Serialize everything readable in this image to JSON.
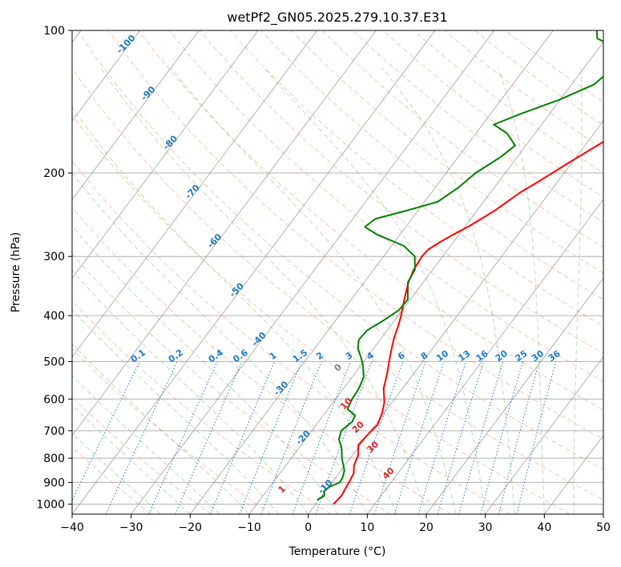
{
  "chart_data": {
    "type": "line",
    "chart_kind": "skew-T log-P diagram",
    "title": "wetPf2_GN05.2025.279.10.37.E31",
    "xlabel": "Temperature (°C)",
    "ylabel": "Pressure (hPa)",
    "xlim": [
      -40,
      50
    ],
    "ylim": [
      1050,
      100
    ],
    "y_scale": "log",
    "x_ticks": [
      "−40",
      "−30",
      "−20",
      "−10",
      "0",
      "10",
      "20",
      "30",
      "40",
      "50"
    ],
    "y_ticks": [
      "100",
      "200",
      "300",
      "400",
      "500",
      "600",
      "700",
      "800",
      "900",
      "1000"
    ],
    "grid": true,
    "series": [
      {
        "color": "#ff0000",
        "role": "temperature",
        "points": [
          [
            3.0,
            1000
          ],
          [
            3.3,
            960
          ],
          [
            3.0,
            920
          ],
          [
            2.8,
            890
          ],
          [
            2.5,
            860
          ],
          [
            1.6,
            830
          ],
          [
            1.0,
            790
          ],
          [
            -0.3,
            750
          ],
          [
            0.0,
            710
          ],
          [
            0.4,
            680
          ],
          [
            -0.4,
            640
          ],
          [
            -1.3,
            610
          ],
          [
            -3.2,
            570
          ],
          [
            -4.5,
            530
          ],
          [
            -5.7,
            500
          ],
          [
            -6.9,
            470
          ],
          [
            -7.9,
            445
          ],
          [
            -8.7,
            420
          ],
          [
            -9.5,
            400
          ],
          [
            -10.5,
            380
          ],
          [
            -11.5,
            360
          ],
          [
            -12.5,
            340
          ],
          [
            -13.2,
            320
          ],
          [
            -13.5,
            300
          ],
          [
            -13.3,
            290
          ],
          [
            -12.3,
            280
          ],
          [
            -11.0,
            270
          ],
          [
            -9.5,
            260
          ],
          [
            -8.2,
            250
          ],
          [
            -7.0,
            240
          ],
          [
            -6.0,
            230
          ],
          [
            -5.0,
            220
          ],
          [
            -3.5,
            210
          ],
          [
            -2.0,
            200
          ],
          [
            -0.5,
            190
          ],
          [
            1.2,
            180
          ],
          [
            3.0,
            170
          ],
          [
            4.3,
            160
          ],
          [
            5.7,
            150
          ],
          [
            6.8,
            140
          ],
          [
            8.1,
            130
          ],
          [
            9.5,
            120
          ],
          [
            10.6,
            110
          ],
          [
            11.6,
            100
          ]
        ]
      },
      {
        "color": "#008000",
        "role": "dewpoint",
        "points": [
          [
            -0.3,
            980
          ],
          [
            0.4,
            960
          ],
          [
            -0.2,
            940
          ],
          [
            0.1,
            920
          ],
          [
            1.3,
            900
          ],
          [
            1.2,
            880
          ],
          [
            0.6,
            850
          ],
          [
            -1.4,
            800
          ],
          [
            -2.8,
            760
          ],
          [
            -4.3,
            730
          ],
          [
            -5.0,
            700
          ],
          [
            -4.3,
            670
          ],
          [
            -4.6,
            650
          ],
          [
            -6.7,
            630
          ],
          [
            -7.2,
            600
          ],
          [
            -7.4,
            570
          ],
          [
            -8.0,
            540
          ],
          [
            -9.6,
            510
          ],
          [
            -11.0,
            490
          ],
          [
            -12.6,
            470
          ],
          [
            -13.6,
            450
          ],
          [
            -13.4,
            430
          ],
          [
            -11.9,
            410
          ],
          [
            -10.6,
            390
          ],
          [
            -10.4,
            370
          ],
          [
            -11.5,
            355
          ],
          [
            -12.6,
            340
          ],
          [
            -13.0,
            320
          ],
          [
            -14.7,
            300
          ],
          [
            -17.9,
            285
          ],
          [
            -23.8,
            270
          ],
          [
            -26.9,
            260
          ],
          [
            -26.2,
            250
          ],
          [
            -21.9,
            240
          ],
          [
            -17.8,
            230
          ],
          [
            -16.1,
            215
          ],
          [
            -15.0,
            200
          ],
          [
            -12.8,
            185
          ],
          [
            -11.8,
            175
          ],
          [
            -14.7,
            165
          ],
          [
            -18.1,
            158
          ],
          [
            -14.9,
            150
          ],
          [
            -10.1,
            140
          ],
          [
            -6.2,
            130
          ],
          [
            -5.0,
            120
          ],
          [
            -5.9,
            110
          ],
          [
            -11.5,
            104
          ],
          [
            -12.6,
            100
          ]
        ]
      }
    ],
    "dry_adiabat_labels": [
      "-100",
      "-90",
      "-80",
      "-70",
      "-60",
      "-50",
      "-40",
      "-30",
      "-20",
      "-10"
    ],
    "mixing_ratio_labels": [
      "0.1",
      "0.2",
      "0.4",
      "0.6",
      "1",
      "1.5",
      "2",
      "3",
      "4",
      "6",
      "8",
      "10",
      "13",
      "16",
      "20",
      "25",
      "30",
      "36"
    ],
    "moist_adiabat_labels": [
      "1",
      "0",
      "10",
      "20",
      "30",
      "40"
    ],
    "colors": {
      "temperature": "#ff0000",
      "dewpoint": "#008000",
      "dry_adiabat": "#ff8c69",
      "moist_adiabat": "#5cb85c",
      "mixing_ratio": "#1e78d2",
      "isotherm": "#808080",
      "isobar": "#b0b0b0",
      "label_red": "#d62728",
      "label_blue": "#1f77b4",
      "label_gray": "#7f7f7f"
    }
  }
}
